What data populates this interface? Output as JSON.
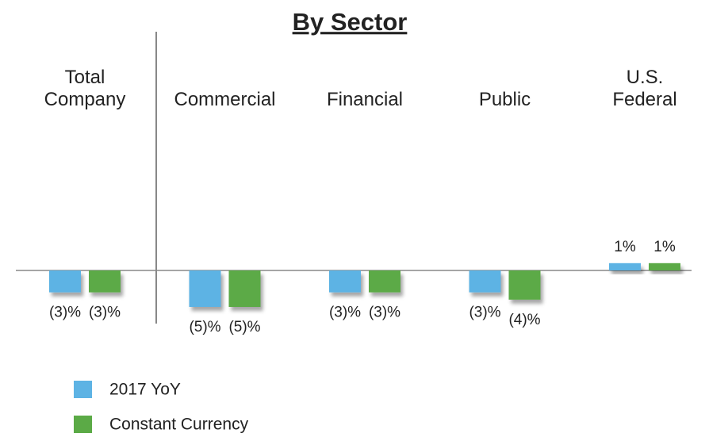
{
  "chart_data": {
    "type": "bar",
    "title": "By Sector",
    "categories": [
      "Total Company",
      "Commercial",
      "Financial",
      "Public",
      "U.S. Federal"
    ],
    "series": [
      {
        "name": "2017 YoY",
        "color": "#5db3e4",
        "values": [
          -3,
          -5,
          -3,
          -3,
          1
        ],
        "value_labels": [
          "(3)%",
          "(5)%",
          "(3)%",
          "(3)%",
          "1%"
        ]
      },
      {
        "name": "Constant Currency",
        "color": "#5baa46",
        "values": [
          -3,
          -5,
          -3,
          -4,
          1
        ],
        "value_labels": [
          "(3)%",
          "(5)%",
          "(3)%",
          "(4)%",
          "1%"
        ]
      }
    ]
  }
}
